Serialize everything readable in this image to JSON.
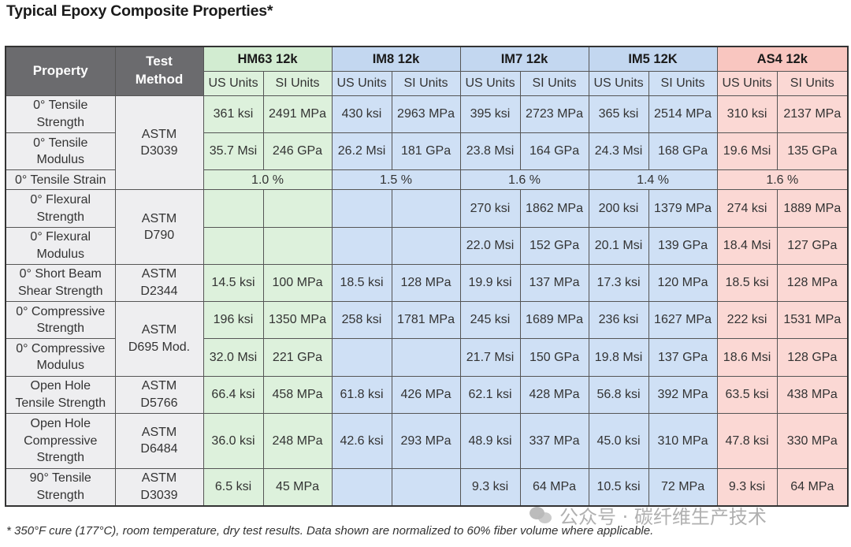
{
  "title": "Typical Epoxy Composite Properties*",
  "header": {
    "property": "Property",
    "method": "Test\nMethod",
    "fibers": [
      "HM63 12k",
      "IM8 12k",
      "IM7 12k",
      "IM5 12K",
      "AS4 12k"
    ],
    "us_units": "US Units",
    "si_units": "SI Units"
  },
  "rows": [
    {
      "property": "0° Tensile\nStrength",
      "method": "ASTM\nD3039",
      "values": [
        "361 ksi",
        "2491 MPa",
        "430 ksi",
        "2963 MPa",
        "395 ksi",
        "2723 MPa",
        "365 ksi",
        "2514 MPa",
        "310 ksi",
        "2137 MPa"
      ]
    },
    {
      "property": "0° Tensile\nModulus",
      "values": [
        "35.7 Msi",
        "246 GPa",
        "26.2 Msi",
        "181 GPa",
        "23.8 Msi",
        "164 GPa",
        "24.3 Msi",
        "168 GPa",
        "19.6 Msi",
        "135 GPa"
      ]
    },
    {
      "property": "0° Tensile Strain",
      "merged": [
        "1.0 %",
        "1.5 %",
        "1.6 %",
        "1.4 %",
        "1.6 %"
      ]
    },
    {
      "property": "0° Flexural\nStrength",
      "method": "ASTM\nD790",
      "values": [
        "",
        "",
        "",
        "",
        "270 ksi",
        "1862 MPa",
        "200 ksi",
        "1379 MPa",
        "274 ksi",
        "1889 MPa"
      ]
    },
    {
      "property": "0° Flexural\nModulus",
      "values": [
        "",
        "",
        "",
        "",
        "22.0 Msi",
        "152 GPa",
        "20.1 Msi",
        "139 GPa",
        "18.4 Msi",
        "127 GPa"
      ]
    },
    {
      "property": "0° Short Beam\nShear Strength",
      "method": "ASTM\nD2344",
      "values": [
        "14.5 ksi",
        "100 MPa",
        "18.5 ksi",
        "128 MPa",
        "19.9 ksi",
        "137 MPa",
        "17.3 ksi",
        "120 MPa",
        "18.5 ksi",
        "128 MPa"
      ]
    },
    {
      "property": "0° Compressive\nStrength",
      "method": "ASTM\nD695 Mod.",
      "values": [
        "196 ksi",
        "1350 MPa",
        "258 ksi",
        "1781 MPa",
        "245 ksi",
        "1689 MPa",
        "236 ksi",
        "1627 MPa",
        "222 ksi",
        "1531 MPa"
      ]
    },
    {
      "property": "0° Compressive\nModulus",
      "values": [
        "32.0 Msi",
        "221 GPa",
        "",
        "",
        "21.7 Msi",
        "150 GPa",
        "19.8 Msi",
        "137 GPa",
        "18.6 Msi",
        "128 GPa"
      ]
    },
    {
      "property": "Open Hole\nTensile Strength",
      "method": "ASTM\nD5766",
      "values": [
        "66.4 ksi",
        "458 MPa",
        "61.8 ksi",
        "426 MPa",
        "62.1 ksi",
        "428 MPa",
        "56.8 ksi",
        "392 MPa",
        "63.5 ksi",
        "438 MPa"
      ]
    },
    {
      "property": "Open Hole\nCompressive\nStrength",
      "method": "ASTM\nD6484",
      "values": [
        "36.0 ksi",
        "248 MPa",
        "42.6 ksi",
        "293 MPa",
        "48.9 ksi",
        "337 MPa",
        "45.0 ksi",
        "310 MPa",
        "47.8 ksi",
        "330 MPa"
      ]
    },
    {
      "property": "90° Tensile\nStrength",
      "method": "ASTM\nD3039",
      "values": [
        "6.5 ksi",
        "45 MPa",
        "",
        "",
        "9.3 ksi",
        "64 MPa",
        "10.5 ksi",
        "72 MPa",
        "9.3 ksi",
        "64 MPa"
      ]
    }
  ],
  "footnote": "* 350°F cure (177°C), room temperature, dry test results. Data shown are normalized to 60% fiber volume where applicable.",
  "watermark": "公众号 · 碳纤维生产技术",
  "colors": {
    "hm63": "#ddf1dc",
    "im": "#cfe0f5",
    "as4": "#fbd8d4",
    "header": "#6b6b6e"
  }
}
